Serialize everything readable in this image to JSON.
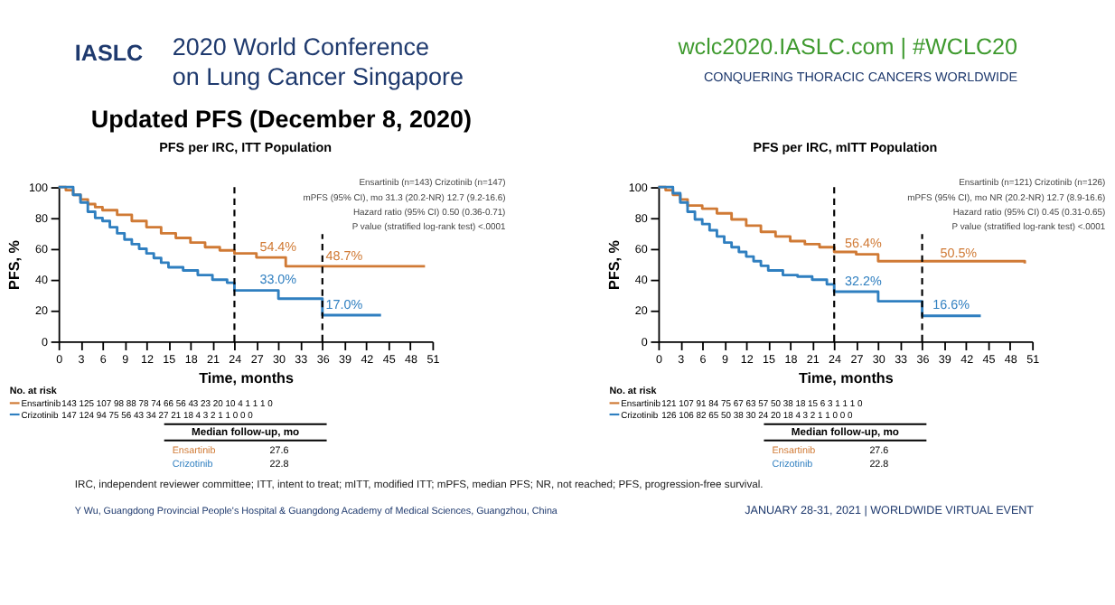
{
  "chart_data": [
    {
      "type": "other",
      "title": "Updated PFS (December 8, 2020)",
      "annotations": [
        "IASLC",
        "2020 World Conference",
        "on Lung Cancer Singapore",
        "wclc2020.IASLC.com | #WCLC20",
        "CONQUERING THORACIC CANCERS WORLDWIDE",
        "IRC, independent reviewer committee; ITT, intent to treat; mITT, modified ITT; mPFS, median PFS; NR, not reached; PFS, progression-free survival.",
        "Y Wu, Guangdong Provincial People's Hospital & Guangdong Academy of Medical Sciences, Guangzhou, China",
        "JANUARY 28-31, 2021 | WORLDWIDE VIRTUAL EVENT"
      ]
    },
    {
      "type": "step",
      "title": "PFS per IRC, ITT Population",
      "xlabel": "Time, months",
      "ylabel": "PFS, %",
      "xlim": [
        0,
        51
      ],
      "ylim": [
        0,
        100
      ],
      "xticks": [
        0,
        3,
        6,
        9,
        12,
        15,
        18,
        21,
        24,
        27,
        30,
        33,
        36,
        39,
        42,
        45,
        48,
        51
      ],
      "yticks": [
        0,
        20,
        40,
        60,
        80,
        100
      ],
      "grid": false,
      "legend": "bottom left",
      "series": [
        {
          "name": "Ensartinib",
          "color": "#d07a35",
          "x": [
            0,
            1,
            2,
            3,
            4,
            5,
            6,
            8,
            10,
            12,
            14,
            16,
            18,
            20,
            22,
            24,
            27,
            31,
            50
          ],
          "values": [
            100,
            98,
            95,
            92,
            89,
            87,
            85,
            82,
            78,
            74,
            70,
            67,
            64,
            61,
            59,
            57,
            54.4,
            48.7,
            48.7
          ]
        },
        {
          "name": "Crizotinib",
          "color": "#2f7fc0",
          "x": [
            0,
            2,
            3,
            4,
            5,
            6,
            7,
            8,
            9,
            10,
            11,
            12,
            13,
            14,
            15,
            17,
            19,
            21,
            23,
            24,
            30,
            36,
            44
          ],
          "values": [
            100,
            95,
            90,
            84,
            80,
            78,
            74,
            70,
            66,
            63,
            60,
            57,
            54,
            51,
            48,
            46,
            43,
            40,
            38,
            33,
            27.7,
            17,
            17
          ]
        }
      ],
      "ref_lines": [
        {
          "axis": "x",
          "value": 24,
          "line_style": "dashed",
          "color": "#000000"
        },
        {
          "axis": "x",
          "value": 36,
          "line_style": "dashed",
          "color": "#000000"
        }
      ],
      "annotations": [
        "Ensartinib (n=143)   Crizotinib (n=147)",
        "mPFS (95% CI), mo   31.3 (20.2-NR)   12.7 (9.2-16.6)",
        "Hazard ratio (95% CI)   0.50 (0.36-0.71)",
        "P value (stratified log-rank test)   <.0001",
        "No. at risk",
        "143 125 107 98 88 78 74 66 56 43 23 20 10 4 1 1 1 0",
        "147 124 94 75 56 43 34 27 21 18 4 3 2 1 1 0 0 0",
        "Median follow-up, mo",
        "27.6",
        "22.8",
        {
          "text": "54.4%",
          "x": 27,
          "y": 54.4
        },
        {
          "text": "48.7%",
          "x": 36,
          "y": 48.7
        },
        {
          "text": "33.0%",
          "x": 27,
          "y": 33
        },
        {
          "text": "17.0%",
          "x": 36,
          "y": 17
        }
      ]
    },
    {
      "type": "step",
      "title": "PFS per IRC, mITT Population",
      "xlabel": "Time, months",
      "ylabel": "PFS, %",
      "xlim": [
        0,
        51
      ],
      "ylim": [
        0,
        100
      ],
      "xticks": [
        0,
        3,
        6,
        9,
        12,
        15,
        18,
        21,
        24,
        27,
        30,
        33,
        36,
        39,
        42,
        45,
        48,
        51
      ],
      "yticks": [
        0,
        20,
        40,
        60,
        80,
        100
      ],
      "grid": false,
      "legend": "bottom left",
      "series": [
        {
          "name": "Ensartinib",
          "color": "#d07a35",
          "x": [
            0,
            1,
            2,
            3,
            4,
            6,
            8,
            10,
            12,
            14,
            16,
            18,
            20,
            22,
            24,
            27,
            30,
            50
          ],
          "values": [
            100,
            98,
            95,
            92,
            88,
            86,
            83,
            79,
            75,
            71,
            68,
            65,
            63,
            61,
            58,
            56.4,
            52,
            50.5
          ]
        },
        {
          "name": "Crizotinib",
          "color": "#2f7fc0",
          "x": [
            0,
            2,
            3,
            4,
            5,
            6,
            7,
            8,
            9,
            10,
            11,
            12,
            13,
            14,
            15,
            17,
            19,
            21,
            23,
            24,
            30,
            36,
            44
          ],
          "values": [
            100,
            96,
            90,
            84,
            79,
            76,
            72,
            68,
            64,
            61,
            58,
            55,
            52,
            49,
            46,
            43,
            42,
            40,
            37,
            32.2,
            26,
            16.6,
            16.6
          ]
        }
      ],
      "ref_lines": [
        {
          "axis": "x",
          "value": 24,
          "line_style": "dashed",
          "color": "#000000"
        },
        {
          "axis": "x",
          "value": 36,
          "line_style": "dashed",
          "color": "#000000"
        }
      ],
      "annotations": [
        "Ensartinib (n=121)   Crizotinib (n=126)",
        "mPFS (95% CI), mo   NR (20.2-NR)   12.7 (8.9-16.6)",
        "Hazard ratio (95% CI)   0.45 (0.31-0.65)",
        "P value (stratified log-rank test)   <.0001",
        "No. at risk",
        "121 107 91 84 75 67 63 57 50 38 18 15 6 3 1 1 1 0",
        "126 106 82 65 50 38 30 24 20 18 4 3 2 1 1 0 0 0",
        "Median follow-up, mo",
        "27.6",
        "22.8",
        {
          "text": "56.4%",
          "x": 25,
          "y": 56.4
        },
        {
          "text": "50.5%",
          "x": 38,
          "y": 50.5
        },
        {
          "text": "32.2%",
          "x": 25,
          "y": 32.2
        },
        {
          "text": "16.6%",
          "x": 37,
          "y": 16.6
        }
      ]
    }
  ]
}
